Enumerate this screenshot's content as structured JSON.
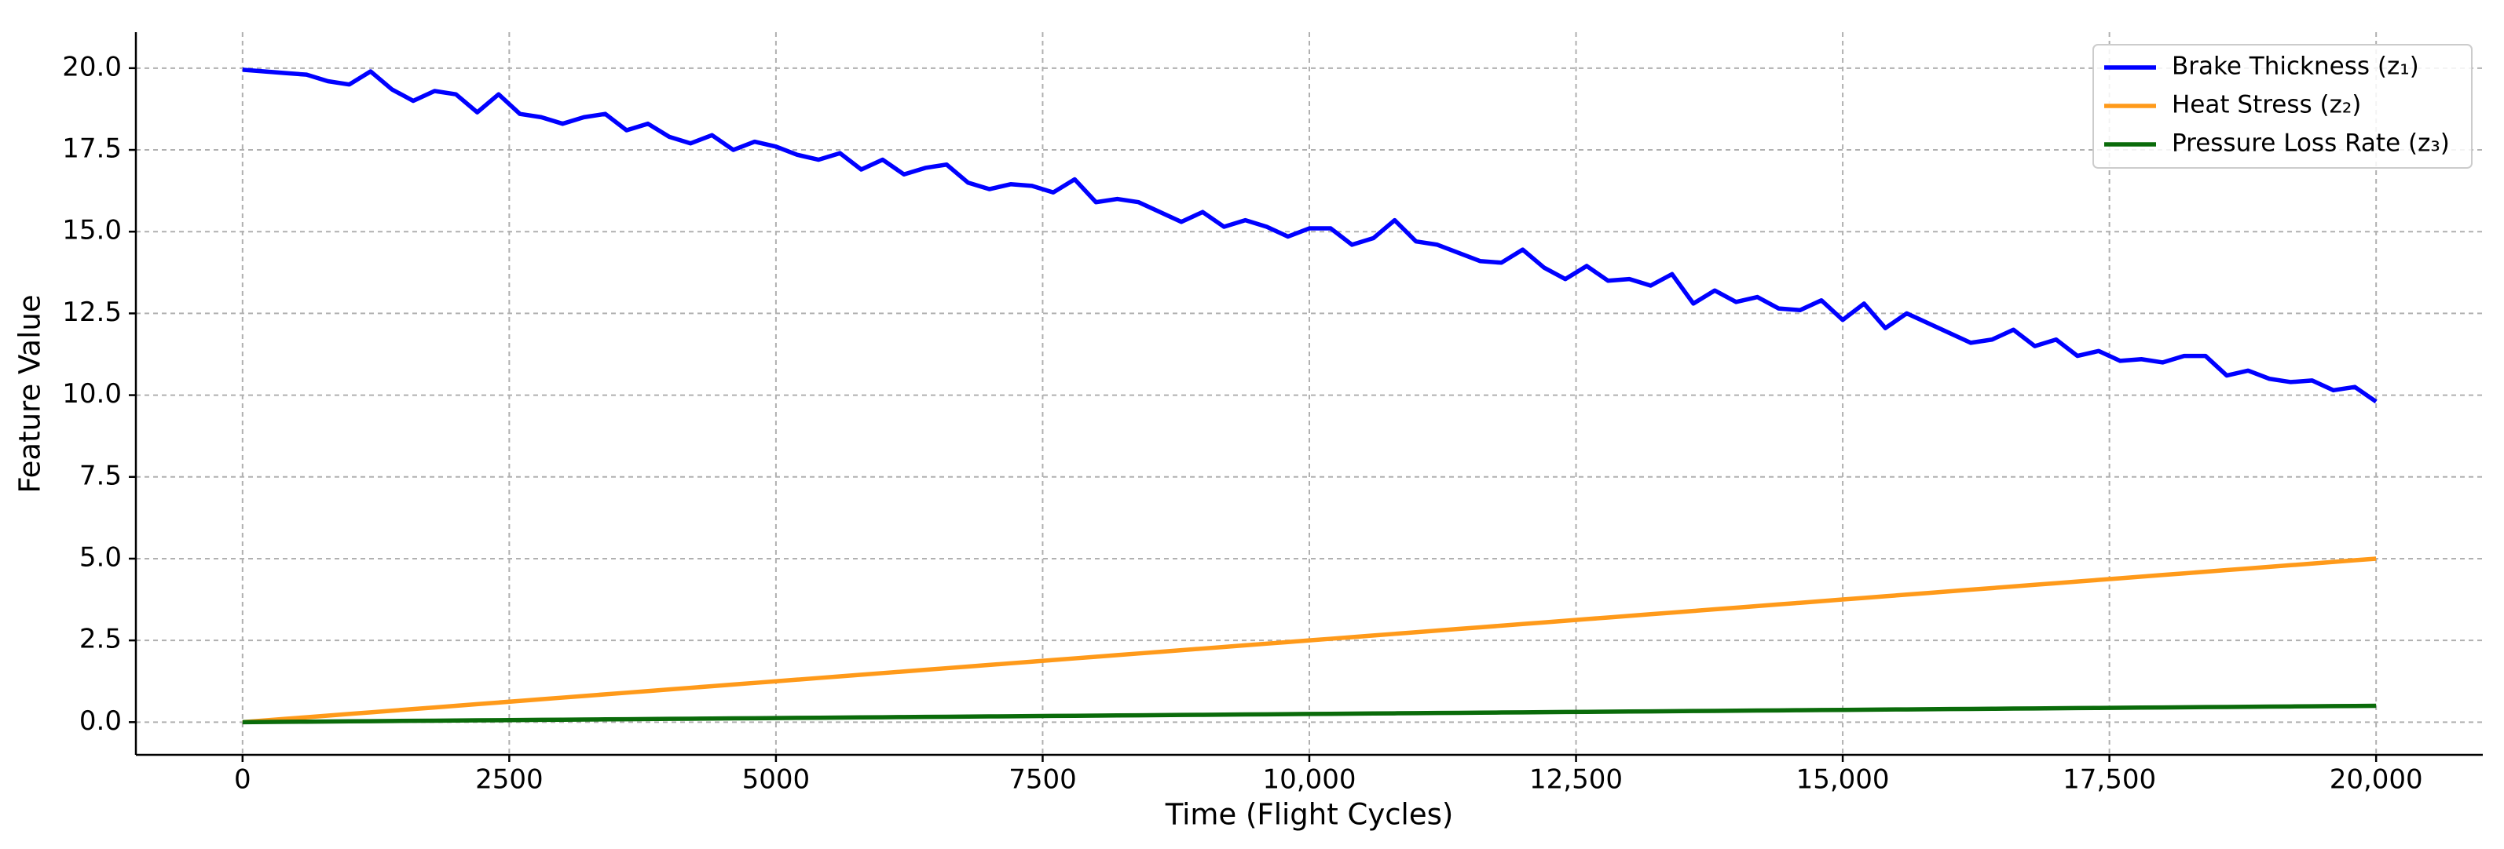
{
  "chart_data": {
    "type": "line",
    "xlabel": "Time (Flight Cycles)",
    "ylabel": "Feature Value",
    "x": [
      0,
      200,
      400,
      600,
      800,
      1000,
      1200,
      1400,
      1600,
      1800,
      2000,
      2200,
      2400,
      2600,
      2800,
      3000,
      3200,
      3400,
      3600,
      3800,
      4000,
      4200,
      4400,
      4600,
      4800,
      5000,
      5200,
      5400,
      5600,
      5800,
      6000,
      6200,
      6400,
      6600,
      6800,
      7000,
      7200,
      7400,
      7600,
      7800,
      8000,
      8200,
      8400,
      8600,
      8800,
      9000,
      9200,
      9400,
      9600,
      9800,
      10000,
      10200,
      10400,
      10600,
      10800,
      11000,
      11200,
      11400,
      11600,
      11800,
      12000,
      12200,
      12400,
      12600,
      12800,
      13000,
      13200,
      13400,
      13600,
      13800,
      14000,
      14200,
      14400,
      14600,
      14800,
      15000,
      15200,
      15400,
      15600,
      15800,
      16000,
      16200,
      16400,
      16600,
      16800,
      17000,
      17200,
      17400,
      17600,
      17800,
      18000,
      18200,
      18400,
      18600,
      18800,
      19000,
      19200,
      19400,
      19600,
      19800,
      20000
    ],
    "series": [
      {
        "name": "Brake Thickness (z₁)",
        "color": "#0000ff",
        "values": [
          19.95,
          19.9,
          19.85,
          19.8,
          19.6,
          19.5,
          19.9,
          19.35,
          19.0,
          19.3,
          19.2,
          18.65,
          19.2,
          18.6,
          18.5,
          18.3,
          18.5,
          18.6,
          18.1,
          18.3,
          17.9,
          17.7,
          17.95,
          17.5,
          17.75,
          17.6,
          17.35,
          17.2,
          17.4,
          16.9,
          17.2,
          16.75,
          16.95,
          17.05,
          16.5,
          16.3,
          16.45,
          16.4,
          16.2,
          16.6,
          15.9,
          16.0,
          15.9,
          15.6,
          15.3,
          15.6,
          15.15,
          15.35,
          15.15,
          14.85,
          15.1,
          15.1,
          14.6,
          14.8,
          15.35,
          14.7,
          14.6,
          14.35,
          14.1,
          14.05,
          14.45,
          13.9,
          13.55,
          13.95,
          13.5,
          13.55,
          13.35,
          13.7,
          12.8,
          13.2,
          12.85,
          13.0,
          12.65,
          12.6,
          12.9,
          12.3,
          12.8,
          12.05,
          12.5,
          12.2,
          11.9,
          11.6,
          11.7,
          12.0,
          11.5,
          11.7,
          11.2,
          11.35,
          11.05,
          11.1,
          11.0,
          11.2,
          11.2,
          10.6,
          10.75,
          10.5,
          10.4,
          10.45,
          10.15,
          10.25,
          9.8
        ]
      },
      {
        "name": "Heat Stress (z₂)",
        "color": "#ff9a1a",
        "values": [
          0,
          0.05,
          0.1,
          0.15,
          0.2,
          0.25,
          0.3,
          0.35,
          0.4,
          0.45,
          0.5,
          0.55,
          0.6,
          0.65,
          0.7,
          0.75,
          0.8,
          0.85,
          0.9,
          0.95,
          1.0,
          1.05,
          1.1,
          1.15,
          1.2,
          1.25,
          1.3,
          1.35,
          1.4,
          1.45,
          1.5,
          1.55,
          1.6,
          1.65,
          1.7,
          1.75,
          1.8,
          1.85,
          1.9,
          1.95,
          2.0,
          2.05,
          2.1,
          2.15,
          2.2,
          2.25,
          2.3,
          2.35,
          2.4,
          2.45,
          2.5,
          2.55,
          2.6,
          2.65,
          2.7,
          2.75,
          2.8,
          2.85,
          2.9,
          2.95,
          3.0,
          3.05,
          3.1,
          3.15,
          3.2,
          3.25,
          3.3,
          3.35,
          3.4,
          3.45,
          3.5,
          3.55,
          3.6,
          3.65,
          3.7,
          3.75,
          3.8,
          3.85,
          3.9,
          3.95,
          4.0,
          4.05,
          4.1,
          4.15,
          4.2,
          4.25,
          4.3,
          4.35,
          4.4,
          4.45,
          4.5,
          4.55,
          4.6,
          4.65,
          4.7,
          4.75,
          4.8,
          4.85,
          4.9,
          4.95,
          5.0
        ]
      },
      {
        "name": "Pressure Loss Rate (z₃)",
        "color": "#0a6b0a",
        "values": [
          0,
          0.005,
          0.01,
          0.015,
          0.02,
          0.025,
          0.03,
          0.035,
          0.04,
          0.045,
          0.05,
          0.055,
          0.06,
          0.065,
          0.07,
          0.075,
          0.08,
          0.085,
          0.09,
          0.095,
          0.1,
          0.105,
          0.11,
          0.115,
          0.12,
          0.125,
          0.13,
          0.135,
          0.14,
          0.145,
          0.15,
          0.155,
          0.16,
          0.165,
          0.17,
          0.175,
          0.18,
          0.185,
          0.19,
          0.195,
          0.2,
          0.205,
          0.21,
          0.215,
          0.22,
          0.225,
          0.23,
          0.235,
          0.24,
          0.245,
          0.25,
          0.255,
          0.26,
          0.265,
          0.27,
          0.275,
          0.28,
          0.285,
          0.29,
          0.295,
          0.3,
          0.305,
          0.31,
          0.315,
          0.32,
          0.325,
          0.33,
          0.335,
          0.34,
          0.345,
          0.35,
          0.355,
          0.36,
          0.365,
          0.37,
          0.375,
          0.38,
          0.385,
          0.39,
          0.395,
          0.4,
          0.405,
          0.41,
          0.415,
          0.42,
          0.425,
          0.43,
          0.435,
          0.44,
          0.445,
          0.45,
          0.455,
          0.46,
          0.465,
          0.47,
          0.475,
          0.48,
          0.485,
          0.49,
          0.495,
          0.5
        ]
      }
    ],
    "xlim": [
      -1000,
      21000
    ],
    "ylim": [
      -1,
      21.1
    ],
    "xticks": [
      0,
      2500,
      5000,
      7500,
      {
        "value": 10000,
        "label": "10,000"
      },
      {
        "value": 12500,
        "label": "12,500"
      },
      {
        "value": 15000,
        "label": "15,000"
      },
      {
        "value": 17500,
        "label": "17,500"
      },
      {
        "value": 20000,
        "label": "20,000"
      }
    ],
    "yticks": [
      {
        "value": 0,
        "label": "0.0"
      },
      2.5,
      {
        "value": 5,
        "label": "5.0"
      },
      7.5,
      {
        "value": 10,
        "label": "10.0"
      },
      12.5,
      {
        "value": 15,
        "label": "15.0"
      },
      17.5,
      {
        "value": 20,
        "label": "20.0"
      }
    ],
    "grid": true,
    "legend": "upper right"
  }
}
